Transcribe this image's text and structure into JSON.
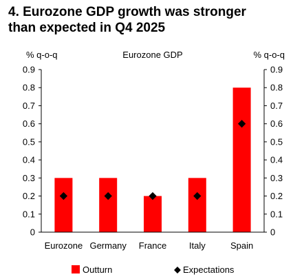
{
  "title_line1": "4. Eurozone GDP growth was stronger",
  "title_line2": "than expected in Q4 2025",
  "chart_data": {
    "type": "bar",
    "chart_label": "Eurozone GDP",
    "ylabel_left": "% q-o-q",
    "ylabel_right": "% q-o-q",
    "categories": [
      "Eurozone",
      "Germany",
      "France",
      "Italy",
      "Spain"
    ],
    "ylim": [
      0,
      0.9
    ],
    "yticks": [
      "0",
      "0.1",
      "0.2",
      "0.3",
      "0.4",
      "0.5",
      "0.6",
      "0.7",
      "0.8",
      "0.9"
    ],
    "grid": false,
    "legend_position": "bottom",
    "series": [
      {
        "name": "Outturn",
        "kind": "bar",
        "color": "#ff0000",
        "values": [
          0.3,
          0.3,
          0.2,
          0.3,
          0.8
        ]
      },
      {
        "name": "Expectations",
        "kind": "marker-diamond",
        "color": "#000000",
        "values": [
          0.2,
          0.2,
          0.2,
          0.2,
          0.6
        ]
      }
    ]
  }
}
